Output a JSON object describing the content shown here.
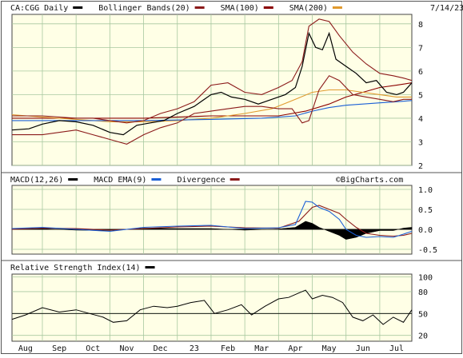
{
  "chart_data": [
    {
      "id": "price",
      "type": "line",
      "title": "CA:CGG Daily",
      "date": "7/14/23",
      "legend": [
        {
          "label": "CA:CGG Daily",
          "color": "#000000"
        },
        {
          "label": "Bollinger Bands(20)",
          "color": "#8b1a1a"
        },
        {
          "label": "SMA(100)",
          "color": "#8b0000"
        },
        {
          "label": "SMA(200)",
          "color": "#e09a2e"
        }
      ],
      "ylim": [
        2,
        8.4
      ],
      "yticks": [
        "2",
        "3",
        "4",
        "5",
        "6",
        "7",
        "8"
      ],
      "x_months": [
        {
          "label": "Aug",
          "x": 0.5
        },
        {
          "label": "Sep",
          "x": 1.5
        },
        {
          "label": "Oct",
          "x": 2.5
        },
        {
          "label": "Nov",
          "x": 3.5
        },
        {
          "label": "Dec",
          "x": 4.5
        },
        {
          "label": "23",
          "x": 5.5
        },
        {
          "label": "Feb",
          "x": 6.5
        },
        {
          "label": "Mar",
          "x": 7.5
        },
        {
          "label": "Apr",
          "x": 8.5
        },
        {
          "label": "May",
          "x": 9.5
        },
        {
          "label": "Jun",
          "x": 10.5
        },
        {
          "label": "Jul",
          "x": 11.5
        }
      ],
      "xlim": [
        0.1,
        11.95
      ],
      "series": [
        {
          "name": "price",
          "color": "#000000",
          "x": [
            0.1,
            0.6,
            1.0,
            1.5,
            2.0,
            2.5,
            3.0,
            3.4,
            3.8,
            4.2,
            4.6,
            5.0,
            5.5,
            6.0,
            6.3,
            6.6,
            7.0,
            7.4,
            7.8,
            8.2,
            8.5,
            8.7,
            8.9,
            9.1,
            9.3,
            9.5,
            9.7,
            10.0,
            10.3,
            10.6,
            10.9,
            11.2,
            11.5,
            11.7,
            11.95
          ],
          "values": [
            3.5,
            3.55,
            3.75,
            3.9,
            3.85,
            3.7,
            3.4,
            3.3,
            3.7,
            3.8,
            3.9,
            4.2,
            4.5,
            5.0,
            5.1,
            4.9,
            4.8,
            4.6,
            4.8,
            5.0,
            5.3,
            6.2,
            7.6,
            7.0,
            6.9,
            7.6,
            6.5,
            6.2,
            5.9,
            5.5,
            5.6,
            5.1,
            5.0,
            5.1,
            5.5
          ]
        },
        {
          "name": "bb_upper",
          "color": "#8b1a1a",
          "x": [
            0.1,
            1.0,
            2.0,
            2.5,
            3.0,
            3.5,
            4.0,
            4.5,
            5.0,
            5.5,
            6.0,
            6.5,
            7.0,
            7.5,
            8.0,
            8.4,
            8.7,
            8.9,
            9.2,
            9.5,
            9.8,
            10.2,
            10.6,
            11.0,
            11.4,
            11.7,
            11.95
          ],
          "values": [
            4.1,
            4.1,
            4.0,
            4.0,
            3.9,
            3.8,
            3.9,
            4.2,
            4.4,
            4.7,
            5.4,
            5.5,
            5.1,
            5.0,
            5.3,
            5.6,
            6.4,
            7.9,
            8.2,
            8.1,
            7.5,
            6.8,
            6.3,
            5.9,
            5.8,
            5.7,
            5.6
          ]
        },
        {
          "name": "bb_lower",
          "color": "#8b1a1a",
          "x": [
            0.1,
            1.0,
            2.0,
            2.5,
            3.0,
            3.5,
            4.0,
            4.5,
            5.0,
            5.5,
            6.0,
            6.5,
            7.0,
            7.5,
            8.0,
            8.4,
            8.7,
            8.9,
            9.2,
            9.5,
            9.8,
            10.2,
            10.6,
            11.0,
            11.4,
            11.7,
            11.95
          ],
          "values": [
            3.3,
            3.3,
            3.5,
            3.3,
            3.1,
            2.9,
            3.3,
            3.6,
            3.8,
            4.2,
            4.3,
            4.4,
            4.5,
            4.5,
            4.4,
            4.4,
            3.8,
            3.9,
            5.2,
            5.8,
            5.6,
            5.0,
            4.9,
            4.8,
            4.7,
            4.8,
            4.8
          ]
        },
        {
          "name": "SMA(100)",
          "color": "#8b0000",
          "x": [
            0.1,
            2.0,
            4.0,
            6.0,
            8.0,
            8.8,
            9.5,
            10.0,
            10.5,
            11.0,
            11.5,
            11.95
          ],
          "values": [
            4.0,
            4.0,
            4.0,
            4.1,
            4.1,
            4.3,
            4.6,
            4.9,
            5.1,
            5.3,
            5.4,
            5.5
          ]
        },
        {
          "name": "SMA(200)",
          "color": "#e09a2e",
          "x": [
            0.1,
            1.0,
            2.0,
            3.0,
            4.0,
            5.0,
            6.0,
            7.0,
            7.8,
            8.5,
            9.0,
            9.5,
            10.0,
            10.5,
            11.0,
            11.5,
            11.95
          ],
          "values": [
            4.15,
            4.05,
            3.95,
            3.85,
            3.85,
            3.9,
            4.0,
            4.2,
            4.4,
            4.8,
            5.1,
            5.2,
            5.2,
            5.1,
            5.0,
            4.9,
            4.9
          ]
        },
        {
          "name": "SMA(200) long",
          "color": "#1a5fd6",
          "x": [
            0.1,
            2.0,
            4.0,
            6.0,
            7.5,
            8.5,
            9.0,
            9.5,
            10.0,
            10.5,
            11.0,
            11.5,
            11.95
          ],
          "values": [
            3.9,
            3.9,
            3.9,
            3.95,
            4.0,
            4.1,
            4.3,
            4.45,
            4.55,
            4.6,
            4.65,
            4.7,
            4.75
          ]
        }
      ]
    },
    {
      "id": "macd",
      "type": "line",
      "title": "MACD(12,26)",
      "watermark": "©BigCharts.com",
      "legend": [
        {
          "label": "MACD(12,26)",
          "color": "#000000"
        },
        {
          "label": "MACD EMA(9)",
          "color": "#1a5fd6"
        },
        {
          "label": "Divergence",
          "color": "#8b1a1a"
        }
      ],
      "ylim": [
        -0.62,
        1.1
      ],
      "yticks": [
        "1.0",
        "0.5",
        "0.0",
        "-0.5"
      ],
      "ytick_values": [
        1.0,
        0.5,
        0.0,
        -0.5
      ],
      "series": [
        {
          "name": "MACD",
          "color": "#1a5fd6",
          "x": [
            0.1,
            1.0,
            2.0,
            3.0,
            4.0,
            5.0,
            6.0,
            7.0,
            8.0,
            8.5,
            8.8,
            9.0,
            9.2,
            9.5,
            9.8,
            10.0,
            10.3,
            10.6,
            11.0,
            11.4,
            11.7,
            11.95
          ],
          "values": [
            0.02,
            0.05,
            0.0,
            -0.05,
            0.05,
            0.08,
            0.1,
            0.02,
            0.04,
            0.12,
            0.7,
            0.68,
            0.55,
            0.45,
            0.25,
            0.0,
            -0.15,
            -0.2,
            -0.18,
            -0.2,
            -0.12,
            -0.05
          ]
        },
        {
          "name": "EMA(9)",
          "color": "#8b1a1a",
          "x": [
            0.1,
            1.0,
            2.0,
            3.0,
            4.0,
            5.0,
            6.0,
            7.0,
            8.0,
            8.6,
            9.0,
            9.2,
            9.5,
            9.8,
            10.0,
            10.3,
            10.6,
            11.0,
            11.4,
            11.7,
            11.95
          ],
          "values": [
            0.0,
            0.03,
            0.02,
            -0.02,
            0.02,
            0.06,
            0.08,
            0.04,
            0.03,
            0.2,
            0.55,
            0.6,
            0.5,
            0.4,
            0.25,
            0.05,
            -0.1,
            -0.15,
            -0.17,
            -0.15,
            -0.1
          ]
        },
        {
          "name": "Divergence",
          "color": "#000000",
          "x": [
            0.1,
            1.0,
            2.0,
            3.0,
            4.0,
            5.0,
            6.0,
            7.0,
            8.0,
            8.5,
            8.8,
            9.0,
            9.2,
            9.5,
            9.8,
            10.0,
            10.3,
            10.6,
            11.0,
            11.4,
            11.7,
            11.95
          ],
          "values": [
            0.02,
            0.02,
            -0.02,
            -0.03,
            0.03,
            0.02,
            0.02,
            -0.02,
            0.01,
            0.05,
            0.2,
            0.15,
            0.05,
            -0.05,
            -0.15,
            -0.25,
            -0.2,
            -0.1,
            -0.03,
            -0.03,
            0.03,
            0.05
          ]
        }
      ]
    },
    {
      "id": "rsi",
      "type": "line",
      "title": "Relative Strength Index(14)",
      "legend": [
        {
          "label": "Relative Strength Index(14)",
          "color": "#000000"
        }
      ],
      "ylim": [
        12,
        104
      ],
      "yticks": [
        "100",
        "80",
        "50",
        "20"
      ],
      "ytick_values": [
        100,
        80,
        50,
        20
      ],
      "series": [
        {
          "name": "RSI",
          "color": "#000000",
          "x": [
            0.1,
            0.5,
            1.0,
            1.5,
            2.0,
            2.4,
            2.8,
            3.1,
            3.5,
            3.9,
            4.3,
            4.7,
            5.0,
            5.4,
            5.8,
            6.1,
            6.5,
            6.9,
            7.2,
            7.6,
            8.0,
            8.3,
            8.6,
            8.8,
            9.0,
            9.3,
            9.6,
            9.9,
            10.2,
            10.5,
            10.8,
            11.1,
            11.4,
            11.7,
            11.95
          ],
          "values": [
            42,
            48,
            58,
            52,
            55,
            50,
            45,
            38,
            40,
            55,
            60,
            58,
            60,
            65,
            68,
            50,
            55,
            62,
            48,
            60,
            70,
            72,
            78,
            82,
            70,
            75,
            72,
            65,
            45,
            40,
            48,
            35,
            45,
            38,
            55
          ]
        }
      ]
    }
  ]
}
